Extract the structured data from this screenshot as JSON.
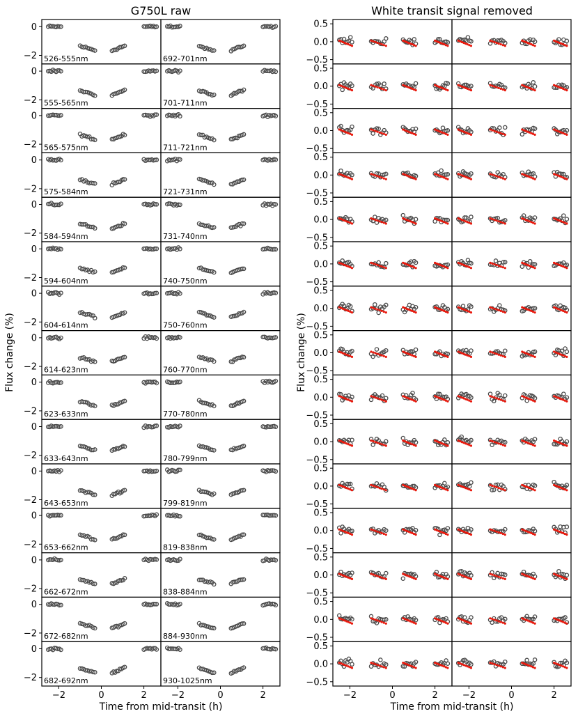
{
  "chart_data": [
    {
      "type": "scatter",
      "title": "G750L raw",
      "xlabel": "Time from mid-transit (h)",
      "ylabel": "Flux change (%)",
      "xlim": [
        -2.8,
        2.8
      ],
      "ylim": [
        -2.6,
        0.5
      ],
      "xticks": [
        "−2",
        "0",
        "2"
      ],
      "yticks": [
        "0",
        "−2"
      ],
      "grid": false,
      "columns": [
        [
          "526-555nm",
          "555-565nm",
          "565-575nm",
          "575-584nm",
          "584-594nm",
          "594-604nm",
          "604-614nm",
          "614-623nm",
          "623-633nm",
          "633-643nm",
          "643-653nm",
          "653-662nm",
          "662-672nm",
          "672-682nm",
          "682-692nm"
        ],
        [
          "692-701nm",
          "701-711nm",
          "711-721nm",
          "721-731nm",
          "731-740nm",
          "740-750nm",
          "750-760nm",
          "760-770nm",
          "770-780nm",
          "780-799nm",
          "799-819nm",
          "819-838nm",
          "838-884nm",
          "884-930nm",
          "930-1025nm"
        ]
      ],
      "orbit_time_ranges": [
        [
          -2.5,
          -1.9
        ],
        [
          -1.0,
          -0.3
        ],
        [
          0.5,
          1.1
        ],
        [
          2.0,
          2.6
        ]
      ],
      "orbit_mean_flux": [
        0.0,
        -1.5,
        -1.5,
        0.0
      ],
      "marker_color": "#4a4a4a"
    },
    {
      "type": "scatter",
      "title": "White transit signal removed",
      "xlabel": "Time from mid-transit (h)",
      "ylabel": "Flux change (%)",
      "xlim": [
        -2.8,
        2.8
      ],
      "ylim": [
        -0.62,
        0.62
      ],
      "xticks": [
        "−2",
        "0",
        "2"
      ],
      "yticks": [
        "0.5",
        "0.0",
        "−0.5"
      ],
      "grid": false,
      "orbit_time_ranges": [
        [
          -2.5,
          -1.9
        ],
        [
          -1.0,
          -0.3
        ],
        [
          0.5,
          1.1
        ],
        [
          2.0,
          2.6
        ]
      ],
      "model_color": "#e8180c",
      "marker_color": "#4a4a4a"
    }
  ]
}
